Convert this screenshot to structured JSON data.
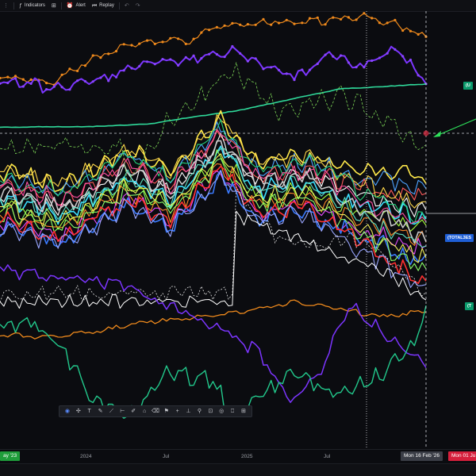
{
  "toolbar": {
    "indicators_label": "Indicators",
    "alert_label": "Alert",
    "replay_label": "Replay"
  },
  "price_scale": {
    "label_top": "(U",
    "label_mid": "(TOTAL3ES",
    "label_low": "(T"
  },
  "time_axis": {
    "start_date": "ay '23",
    "ticks": [
      "2024",
      "Jul",
      "2025",
      "Jul"
    ],
    "crosshair_date": "Mon 16 Feb '26",
    "end_date": "Mon 01 Ju"
  },
  "colors": {
    "background": "#0b0c10",
    "start_tag": "#1f9d3a",
    "crosshair_tag": "#3a3d46",
    "end_tag": "#d61f3c",
    "label_top": "#0b9a6c",
    "label_mid": "#1f5fd6",
    "label_low": "#0b9a6c"
  },
  "drawing_tools": [
    "cursor-icon",
    "crosshair-icon",
    "text-icon",
    "pen-icon",
    "line-icon",
    "measure-icon",
    "brush-icon",
    "magnet-icon",
    "eraser-icon",
    "flag-icon",
    "plus-icon",
    "ruler-icon",
    "zoom-icon",
    "lock-icon",
    "eye-icon",
    "trash-icon",
    "grid-icon"
  ],
  "drawing_tool_glyphs": [
    "◉",
    "✣",
    "T",
    "✎",
    "⟋",
    "⊢",
    "✐",
    "⌂",
    "⌫",
    "⚑",
    "+",
    "⊥",
    "⚲",
    "⊡",
    "◎",
    "⎕",
    "⊞"
  ]
}
